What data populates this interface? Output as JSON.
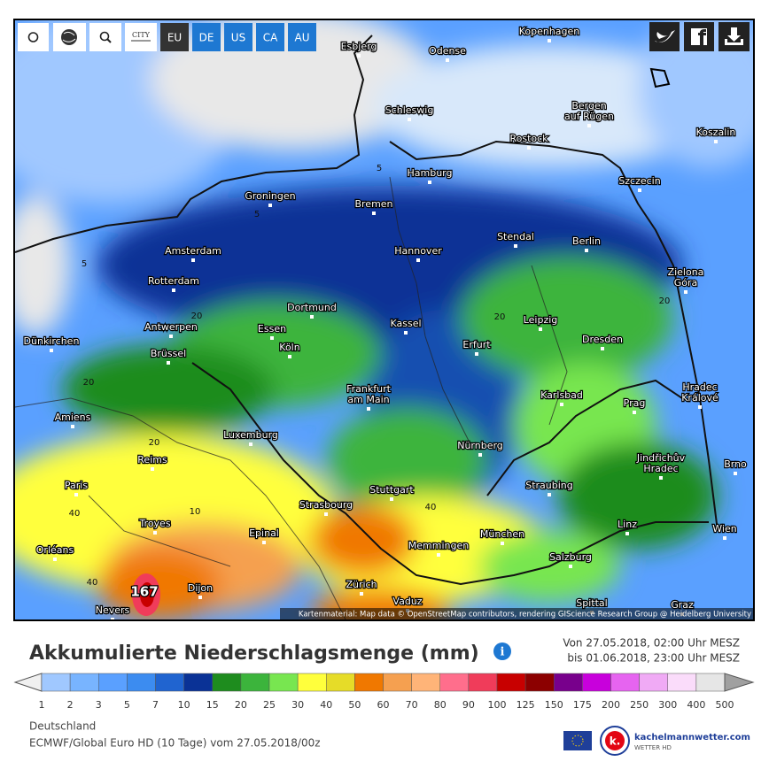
{
  "toolbar": {
    "city": "CITY",
    "regions": [
      "EU",
      "DE",
      "US",
      "CA",
      "AU"
    ],
    "active_region": "EU"
  },
  "map": {
    "cities": [
      "Kopenhagen",
      "Esbjerg",
      "Odense",
      "Schleswig",
      [
        "Bergen",
        "auf Rügen"
      ],
      "Rostock",
      "Koszalin",
      "Hamburg",
      "Szczecin",
      "Groningen",
      "Bremen",
      "Stendal",
      "Berlin",
      "Amsterdam",
      "Hannover",
      [
        "Zielona",
        "Góra"
      ],
      "Rotterdam",
      "Dortmund",
      "Leipzig",
      "Antwerpen",
      "Essen",
      "Kassel",
      "Dünkirchen",
      "Dresden",
      "Köln",
      "Erfurt",
      "Brüssel",
      [
        "Frankfurt",
        "am Main"
      ],
      [
        "Hradec",
        "Králové"
      ],
      "Karlsbad",
      "Prag",
      "Amiens",
      "Luxemburg",
      "Nürnberg",
      "Reims",
      [
        "Jindřichův",
        "Hradec"
      ],
      "Paris",
      "Straubing",
      "Stuttgart",
      "Brno",
      "Strasbourg",
      "Troyes",
      "Epinal",
      "München",
      "Memmingen",
      "Linz",
      "Wien",
      "Orléans",
      "Salzburg",
      "Dijon",
      "Zürich",
      "Vaduz",
      "Nevers",
      "Spittal",
      "Graz"
    ],
    "contour_labels": [
      5,
      5,
      5,
      20,
      20,
      20,
      20,
      20,
      40,
      40,
      40,
      10
    ],
    "max_value": 167,
    "attribution": "Kartenmaterial: Map data © OpenStreetMap contributors, rendering GIScience Research Group @ Heidelberg University"
  },
  "header": {
    "title": "Akkumulierte Niederschlagsmenge (mm)",
    "from": "Von 27.05.2018, 02:00 Uhr MESZ",
    "to": "bis 01.06.2018, 23:00 Uhr MESZ"
  },
  "legend": {
    "values": [
      1,
      2,
      3,
      5,
      7,
      10,
      15,
      20,
      25,
      30,
      40,
      50,
      60,
      70,
      80,
      90,
      100,
      125,
      150,
      175,
      200,
      250,
      300,
      400,
      500
    ],
    "colors": [
      "#a0c8ff",
      "#78b4ff",
      "#5aa0ff",
      "#3c8cf0",
      "#2064d0",
      "#0a3296",
      "#1e8c1e",
      "#3cb43c",
      "#78e650",
      "#ffff3c",
      "#e6dc28",
      "#f07800",
      "#f5a050",
      "#ffb478",
      "#ff6e8c",
      "#f03c5a",
      "#c80000",
      "#8c0000",
      "#78008c",
      "#c800dc",
      "#e664f0",
      "#f0aaf5",
      "#fadcfa",
      "#e6e6e6"
    ],
    "below_color": "#f0f0f0",
    "above_color": "#a0a0a0"
  },
  "footer": {
    "region": "Deutschland",
    "model": "ECMWF/Global Euro HD (10 Tage) vom 27.05.2018/00z",
    "brand": "kachelmannwetter.com",
    "brand_sub": "WETTER HD"
  }
}
